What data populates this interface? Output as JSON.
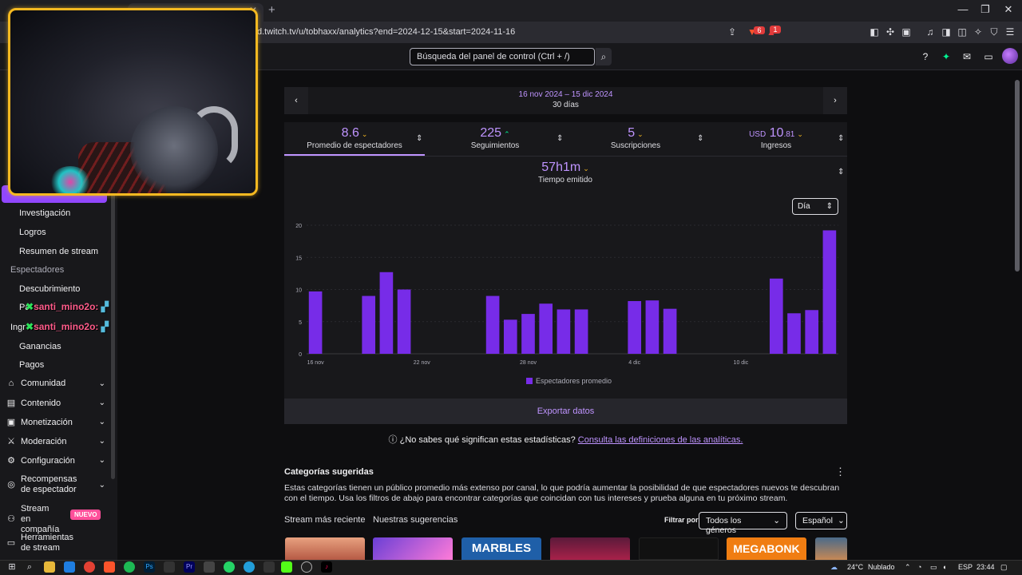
{
  "browser": {
    "url": "d.twitch.tv/u/tobhaxx/analytics?end=2024-12-15&start=2024-11-16",
    "new_tab": "+",
    "tab_close": "✕",
    "win_min": "—",
    "win_restore": "❐",
    "win_close": "✕",
    "ext_badge_1": "6",
    "ext_badge_2": "1"
  },
  "topbar": {
    "search_placeholder": "Búsqueda del panel de control (Ctrl + /)"
  },
  "sidebar": {
    "sub_items": [
      {
        "label": "Investigación"
      },
      {
        "label": "Logros"
      },
      {
        "label": "Resumen de stream"
      }
    ],
    "section_viewers": "Espectadores",
    "viewer_items": [
      {
        "label": "Descubrimiento"
      },
      {
        "label": "Pa"
      }
    ],
    "income_head": "Ingr",
    "income_items": [
      {
        "label": "Ganancias"
      },
      {
        "label": "Pagos"
      }
    ],
    "main_items": [
      {
        "label": "Comunidad"
      },
      {
        "label": "Contenido"
      },
      {
        "label": "Monetización"
      },
      {
        "label": "Moderación"
      },
      {
        "label": "Configuración"
      },
      {
        "label": "Recompensas de espectador"
      },
      {
        "label": "Stream en compañía"
      },
      {
        "label": "Herramientas de stream"
      }
    ],
    "new_badge": "NUEVO"
  },
  "chat_overlay": {
    "messages": [
      {
        "user": "santi_mino2o:"
      },
      {
        "user": "santi_mino2o:"
      }
    ]
  },
  "date_range": {
    "range": "16 nov 2024 – 15 dic 2024",
    "days": "30 días"
  },
  "stats": [
    {
      "value": "8.6",
      "label": "Promedio de espectadores",
      "trend": "down"
    },
    {
      "value": "225",
      "label": "Seguimientos",
      "trend": "up"
    },
    {
      "value": "5",
      "label": "Suscripciones",
      "trend": "down"
    },
    {
      "currency": "USD",
      "value": "10",
      "cents": ".81",
      "label": "Ingresos",
      "trend": "down"
    }
  ],
  "stream_time": {
    "value": "57h1m",
    "label": "Tiempo emitido",
    "trend": "down"
  },
  "period_select": "Día",
  "chart_data": {
    "type": "bar",
    "series": [
      {
        "name": "Espectadores promedio",
        "color": "#772ce8",
        "values": [
          9.7,
          0,
          0,
          9.0,
          12.7,
          10.0,
          0,
          0,
          0,
          0,
          9.0,
          5.3,
          6.2,
          7.8,
          6.9,
          6.9,
          0,
          0,
          8.2,
          8.3,
          7.0,
          0,
          0,
          0,
          0,
          0,
          11.7,
          6.3,
          6.8,
          19.2
        ]
      }
    ],
    "x": [
      "16 nov",
      "17 nov",
      "18 nov",
      "19 nov",
      "20 nov",
      "21 nov",
      "22 nov",
      "23 nov",
      "24 nov",
      "25 nov",
      "26 nov",
      "27 nov",
      "28 nov",
      "29 nov",
      "30 nov",
      "1 dic",
      "2 dic",
      "3 dic",
      "4 dic",
      "5 dic",
      "6 dic",
      "7 dic",
      "8 dic",
      "9 dic",
      "10 dic",
      "11 dic",
      "12 dic",
      "13 dic",
      "14 dic",
      "15 dic"
    ],
    "xtick_labels": [
      "16 nov",
      "22 nov",
      "28 nov",
      "4 dic",
      "10 dic"
    ],
    "xtick_index": [
      0,
      6,
      12,
      18,
      24
    ],
    "yticks": [
      0,
      5,
      10,
      15,
      20
    ],
    "ylim": [
      0,
      20
    ],
    "grid": true,
    "legend": "bottom-center"
  },
  "export_label": "Exportar datos",
  "help": {
    "question": "¿No sabes qué significan estas estadísticas?",
    "link": "Consulta las definiciones de las analíticas."
  },
  "categories": {
    "title": "Categorías sugeridas",
    "description": "Estas categorías tienen un público promedio más extenso por canal, lo que podría aumentar la posibilidad de que espectadores nuevos te descubran con el tiempo. Usa los filtros de abajo para encontrar categorías que coincidan con tus intereses y prueba alguna en tu próximo stream.",
    "tab_recent": "Stream más reciente",
    "tab_suggestions": "Nuestras sugerencias",
    "filter_label": "Filtrar por",
    "genre_select": "Todos los géneros",
    "language_select": "Español",
    "thumbs": [
      {
        "label": ""
      },
      {
        "label": ""
      },
      {
        "label": "MARBLES"
      },
      {
        "label": ""
      },
      {
        "label": ""
      },
      {
        "label": "MEGABONK"
      },
      {
        "label": ""
      }
    ]
  },
  "taskbar": {
    "weather": "24°C",
    "weather_text": "Nublado",
    "lang": "ESP",
    "time": "23:44"
  }
}
